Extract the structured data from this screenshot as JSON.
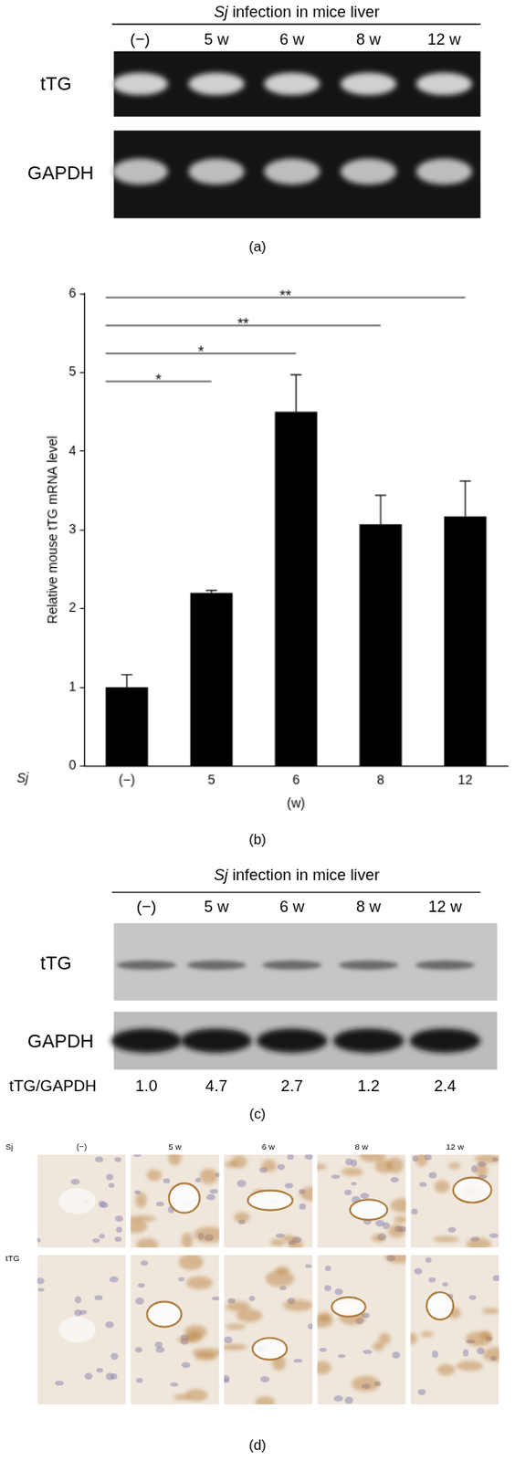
{
  "figure": {
    "a": {
      "panel_label": "(a)",
      "header": "Sj infection in mice liver",
      "lanes": [
        "(−)",
        "5 w",
        "6 w",
        "8 w",
        "12 w"
      ],
      "rows": [
        "tTG",
        "GAPDH"
      ]
    },
    "c": {
      "panel_label": "(c)",
      "header": "Sj infection in mice liver",
      "lanes": [
        "(−)",
        "5 w",
        "6 w",
        "8 w",
        "12 w"
      ],
      "rows": [
        "tTG",
        "GAPDH"
      ],
      "ratio_label": "tTG/GAPDH",
      "ratios": [
        {
          "value": 1,
          "label": "1.0"
        },
        4.7,
        2.7,
        1.2,
        2.4
      ]
    },
    "d": {
      "panel_label": "(d)",
      "columns": [
        "(−)",
        "5 w",
        "6 w",
        "8 w",
        "12 w"
      ],
      "rows": [
        "Sj",
        "tTG"
      ]
    }
  },
  "chart_data": {
    "type": "bar",
    "panel_label": "(b)",
    "y_label": "Relative mouse tTG mRNA level",
    "x_label": "(w)",
    "x_axis_prefix": "Sj",
    "categories": [
      "(−)",
      "5",
      "6",
      "8",
      "12"
    ],
    "values": [
      1.0,
      2.2,
      4.5,
      3.07,
      3.17
    ],
    "errors": [
      0.16,
      0.03,
      0.47,
      0.37,
      0.45
    ],
    "color": "#000000",
    "ylim": [
      0,
      6
    ],
    "yticks": [
      0,
      1,
      2,
      3,
      4,
      5,
      6
    ],
    "grid": false,
    "significance": [
      {
        "from": "(−)",
        "to": "5",
        "label": "*"
      },
      {
        "from": "(−)",
        "to": "6",
        "label": "*"
      },
      {
        "from": "(−)",
        "to": "8",
        "label": "**"
      },
      {
        "from": "(−)",
        "to": "12",
        "label": "**"
      }
    ]
  }
}
